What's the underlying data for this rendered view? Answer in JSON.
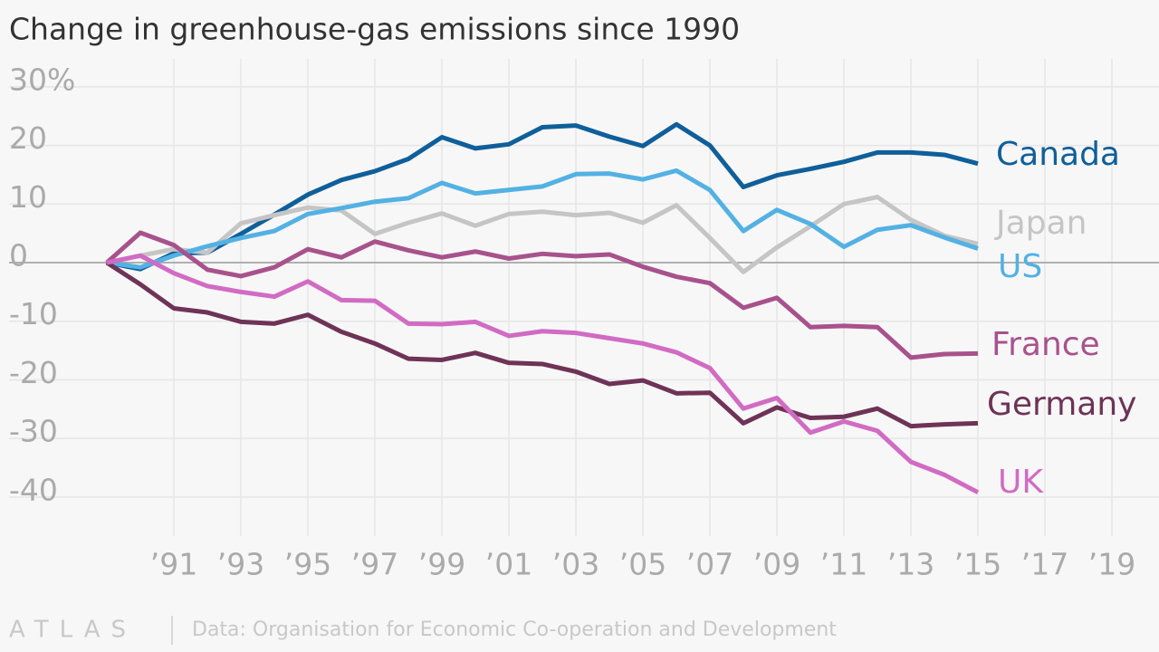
{
  "chart_data": {
    "type": "line",
    "title": "Change in greenhouse-gas emissions since 1990",
    "x": [
      1989,
      1990,
      1991,
      1992,
      1993,
      1994,
      1995,
      1996,
      1997,
      1998,
      1999,
      2000,
      2001,
      2002,
      2003,
      2004,
      2005,
      2006,
      2007,
      2008,
      2009,
      2010,
      2011,
      2012,
      2013,
      2014,
      2015
    ],
    "series": [
      {
        "name": "Canada",
        "color": "#0f5f9a",
        "values": [
          0,
          -1.1,
          1.6,
          1.7,
          4.9,
          8.2,
          11.6,
          14.1,
          15.6,
          17.7,
          21.4,
          19.5,
          20.2,
          23.1,
          23.4,
          21.5,
          19.9,
          23.6,
          20.0,
          12.9,
          14.9,
          16.0,
          17.2,
          18.8,
          18.8,
          18.4,
          16.9
        ]
      },
      {
        "name": "Japan",
        "color": "#c5c5c5",
        "values": [
          0,
          1.2,
          2.3,
          1.7,
          6.7,
          8.1,
          9.4,
          8.9,
          4.9,
          6.8,
          8.4,
          6.3,
          8.3,
          8.7,
          8.1,
          8.5,
          6.8,
          9.8,
          4.2,
          -1.6,
          2.6,
          6.2,
          10.0,
          11.2,
          7.3,
          4.6,
          3.2
        ]
      },
      {
        "name": "US",
        "color": "#53b1e3",
        "values": [
          0,
          -0.8,
          1.2,
          2.8,
          4.2,
          5.4,
          8.3,
          9.3,
          10.4,
          11.0,
          13.6,
          11.8,
          12.4,
          13.0,
          15.1,
          15.2,
          14.2,
          15.7,
          12.4,
          5.4,
          9.0,
          6.6,
          2.7,
          5.6,
          6.4,
          4.3,
          2.4
        ]
      },
      {
        "name": "France",
        "color": "#a8528c",
        "values": [
          0,
          5.1,
          3.0,
          -1.2,
          -2.3,
          -0.8,
          2.3,
          0.9,
          3.6,
          2.1,
          0.9,
          1.9,
          0.7,
          1.5,
          1.1,
          1.4,
          -0.7,
          -2.4,
          -3.5,
          -7.7,
          -6.0,
          -11.0,
          -10.8,
          -11.0,
          -16.2,
          -15.6,
          -15.5
        ]
      },
      {
        "name": "Germany",
        "color": "#6e3356",
        "values": [
          0,
          -3.7,
          -7.8,
          -8.5,
          -10.1,
          -10.4,
          -8.9,
          -11.8,
          -13.8,
          -16.4,
          -16.6,
          -15.4,
          -17.1,
          -17.3,
          -18.6,
          -20.7,
          -20.1,
          -22.3,
          -22.2,
          -27.4,
          -24.7,
          -26.5,
          -26.3,
          -24.9,
          -27.9,
          -27.6,
          -27.4
        ]
      },
      {
        "name": "UK",
        "color": "#d16bc3",
        "values": [
          0,
          1.2,
          -1.8,
          -4.0,
          -5.0,
          -5.8,
          -3.2,
          -6.4,
          -6.5,
          -10.4,
          -10.5,
          -10.1,
          -12.5,
          -11.7,
          -12.0,
          -12.9,
          -13.8,
          -15.3,
          -18.0,
          -24.9,
          -23.1,
          -29.0,
          -27.1,
          -28.7,
          -34.0,
          -36.2,
          -39.2
        ]
      }
    ],
    "xlim": [
      1986.5,
      2020
    ],
    "xticks": [
      {
        "value": 1991,
        "label": "’91"
      },
      {
        "value": 1993,
        "label": "’93"
      },
      {
        "value": 1995,
        "label": "’95"
      },
      {
        "value": 1997,
        "label": "’97"
      },
      {
        "value": 1999,
        "label": "’99"
      },
      {
        "value": 2001,
        "label": "’01"
      },
      {
        "value": 2003,
        "label": "’03"
      },
      {
        "value": 2005,
        "label": "’05"
      },
      {
        "value": 2007,
        "label": "’07"
      },
      {
        "value": 2009,
        "label": "’09"
      },
      {
        "value": 2011,
        "label": "’11"
      },
      {
        "value": 2013,
        "label": "’13"
      },
      {
        "value": 2015,
        "label": "’15"
      },
      {
        "value": 2017,
        "label": "’17"
      },
      {
        "value": 2019,
        "label": "’19"
      }
    ],
    "ylim": [
      -44.5,
      34
    ],
    "yticks": [
      {
        "value": 30,
        "label": "30%"
      },
      20,
      10,
      0,
      -10,
      -20,
      -30,
      -40
    ],
    "grid": true,
    "brand": "ATLAS",
    "source": "Data: Organisation for Economic Co-operation and Development"
  }
}
